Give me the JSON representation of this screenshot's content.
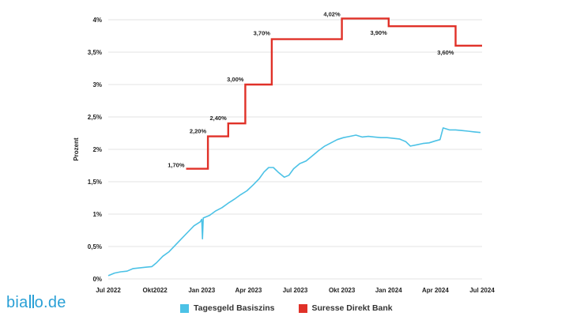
{
  "brand": {
    "logo_prefix": "bia",
    "logo_suffix": "o.de",
    "logo_full": "biallo.de"
  },
  "colors": {
    "tagesgeld": "#4cc2e6",
    "suresse": "#e03128",
    "grid": "#e3e3e3"
  },
  "chart_data": {
    "type": "line",
    "ylabel": "Prozent",
    "ylim": [
      0,
      4
    ],
    "yticks": [
      {
        "v": 0,
        "label": "0%"
      },
      {
        "v": 0.5,
        "label": "0,5%"
      },
      {
        "v": 1,
        "label": "1%"
      },
      {
        "v": 1.5,
        "label": "1,5%"
      },
      {
        "v": 2,
        "label": "2%"
      },
      {
        "v": 2.5,
        "label": "2,5%"
      },
      {
        "v": 3,
        "label": "3%"
      },
      {
        "v": 3.5,
        "label": "3,5%"
      },
      {
        "v": 4,
        "label": "4%"
      }
    ],
    "xlim": [
      0,
      24
    ],
    "xticks": [
      {
        "m": 0,
        "label": "Jul 2022"
      },
      {
        "m": 3,
        "label": "Okt2022"
      },
      {
        "m": 6,
        "label": "Jan 2023"
      },
      {
        "m": 9,
        "label": "Apr 2023"
      },
      {
        "m": 12,
        "label": "Jul 2023"
      },
      {
        "m": 15,
        "label": "Okt 2023"
      },
      {
        "m": 18,
        "label": "Jan 2024"
      },
      {
        "m": 21,
        "label": "Apr 2024"
      },
      {
        "m": 24,
        "label": "Jul 2024"
      }
    ],
    "series": [
      {
        "name": "Tagesgeld Basiszins",
        "kind": "line",
        "points": [
          [
            0,
            0.05
          ],
          [
            0.4,
            0.09
          ],
          [
            0.8,
            0.11
          ],
          [
            1.2,
            0.12
          ],
          [
            1.6,
            0.16
          ],
          [
            2.0,
            0.17
          ],
          [
            2.4,
            0.18
          ],
          [
            2.8,
            0.19
          ],
          [
            3.1,
            0.25
          ],
          [
            3.5,
            0.35
          ],
          [
            3.9,
            0.42
          ],
          [
            4.3,
            0.52
          ],
          [
            4.7,
            0.62
          ],
          [
            5.1,
            0.72
          ],
          [
            5.5,
            0.82
          ],
          [
            5.9,
            0.88
          ],
          [
            6.0,
            0.92
          ],
          [
            6.05,
            0.62
          ],
          [
            6.1,
            0.94
          ],
          [
            6.5,
            0.98
          ],
          [
            6.9,
            1.05
          ],
          [
            7.3,
            1.1
          ],
          [
            7.7,
            1.17
          ],
          [
            8.1,
            1.23
          ],
          [
            8.5,
            1.3
          ],
          [
            8.9,
            1.36
          ],
          [
            9.3,
            1.45
          ],
          [
            9.7,
            1.55
          ],
          [
            10.0,
            1.65
          ],
          [
            10.3,
            1.72
          ],
          [
            10.6,
            1.72
          ],
          [
            10.9,
            1.65
          ],
          [
            11.3,
            1.57
          ],
          [
            11.6,
            1.6
          ],
          [
            11.9,
            1.7
          ],
          [
            12.3,
            1.78
          ],
          [
            12.7,
            1.82
          ],
          [
            13.1,
            1.9
          ],
          [
            13.5,
            1.98
          ],
          [
            13.9,
            2.05
          ],
          [
            14.3,
            2.1
          ],
          [
            14.7,
            2.15
          ],
          [
            15.1,
            2.18
          ],
          [
            15.5,
            2.2
          ],
          [
            15.9,
            2.22
          ],
          [
            16.3,
            2.19
          ],
          [
            16.7,
            2.2
          ],
          [
            17.1,
            2.19
          ],
          [
            17.5,
            2.18
          ],
          [
            17.9,
            2.18
          ],
          [
            18.3,
            2.17
          ],
          [
            18.7,
            2.16
          ],
          [
            19.1,
            2.12
          ],
          [
            19.4,
            2.05
          ],
          [
            19.8,
            2.07
          ],
          [
            20.2,
            2.09
          ],
          [
            20.6,
            2.1
          ],
          [
            21.0,
            2.13
          ],
          [
            21.3,
            2.15
          ],
          [
            21.5,
            2.33
          ],
          [
            21.9,
            2.3
          ],
          [
            22.3,
            2.3
          ],
          [
            22.7,
            2.29
          ],
          [
            23.1,
            2.28
          ],
          [
            23.5,
            2.27
          ],
          [
            23.9,
            2.26
          ]
        ]
      },
      {
        "name": "Suresse Direkt Bank",
        "kind": "step",
        "steps": [
          {
            "from": 5.0,
            "to": 6.4,
            "value": 1.7,
            "label": "1,70%"
          },
          {
            "from": 6.4,
            "to": 7.7,
            "value": 2.2,
            "label": "2,20%"
          },
          {
            "from": 7.7,
            "to": 8.8,
            "value": 2.4,
            "label": "2,40%"
          },
          {
            "from": 8.8,
            "to": 10.5,
            "value": 3.0,
            "label": "3,00%"
          },
          {
            "from": 10.5,
            "to": 15.0,
            "value": 3.7,
            "label": "3,70%"
          },
          {
            "from": 15.0,
            "to": 18.0,
            "value": 4.02,
            "label": "4,02%"
          },
          {
            "from": 18.0,
            "to": 22.3,
            "value": 3.9,
            "label": "3,90%"
          },
          {
            "from": 22.3,
            "to": 24.0,
            "value": 3.6,
            "label": "3,60%"
          }
        ]
      }
    ],
    "legend": [
      {
        "name": "Tagesgeld Basiszins",
        "color": "#4cc2e6"
      },
      {
        "name": "Suresse Direkt Bank",
        "color": "#e03128"
      }
    ]
  }
}
